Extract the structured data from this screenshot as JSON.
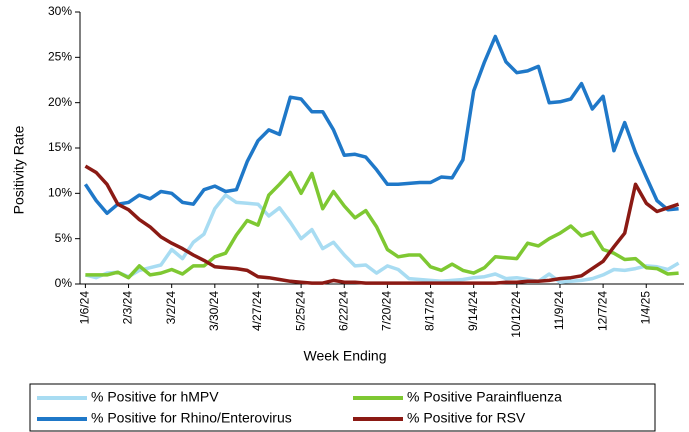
{
  "chart_data": {
    "type": "line",
    "x_label": "Week Ending",
    "y_label": "Positivity Rate",
    "categories": [
      "1/6/24",
      null,
      null,
      null,
      "2/3/24",
      null,
      null,
      null,
      "3/2/24",
      null,
      null,
      null,
      "3/30/24",
      null,
      null,
      null,
      "4/27/24",
      null,
      null,
      null,
      "5/25/24",
      null,
      null,
      null,
      "6/22/24",
      null,
      null,
      null,
      "7/20/24",
      null,
      null,
      null,
      "8/17/24",
      null,
      null,
      null,
      "9/14/24",
      null,
      null,
      null,
      "10/12/24",
      null,
      null,
      null,
      "11/9/24",
      null,
      null,
      null,
      "12/7/24",
      null,
      null,
      null,
      "1/4/25",
      null,
      null,
      null
    ],
    "ylim": [
      0,
      30
    ],
    "yticks": [
      {
        "value": 0,
        "label": "0%"
      },
      {
        "value": 5,
        "label": "5%"
      },
      {
        "value": 10,
        "label": "10%"
      },
      {
        "value": 15,
        "label": "15%"
      },
      {
        "value": 20,
        "label": "20%"
      },
      {
        "value": 25,
        "label": "25%"
      },
      {
        "value": 30,
        "label": "30%"
      }
    ],
    "grid": false,
    "legend_position": "bottom",
    "series": [
      {
        "name": "% Positive for hMPV",
        "color": "#a8dcf2",
        "values": [
          1,
          0.7,
          1.2,
          1.3,
          0.8,
          1.5,
          1.8,
          2.1,
          3.8,
          2.8,
          4.6,
          5.5,
          8.3,
          9.8,
          9,
          8.9,
          8.8,
          7.5,
          8.4,
          6.8,
          5,
          6,
          3.9,
          4.6,
          3.2,
          2,
          2.1,
          1.2,
          2,
          1.6,
          0.6,
          0.5,
          0.4,
          0.3,
          0.4,
          0.5,
          0.7,
          0.8,
          1.1,
          0.6,
          0.7,
          0.5,
          0.3,
          1.1,
          0.2,
          0.3,
          0.4,
          0.6,
          1,
          1.6,
          1.5,
          1.7,
          2,
          1.9,
          1.6,
          2.3
        ]
      },
      {
        "name": "% Positive Parainfluenza",
        "color": "#7ec832",
        "values": [
          1,
          1,
          1,
          1.3,
          0.7,
          2,
          1,
          1.2,
          1.6,
          1.1,
          2,
          2,
          3,
          3.4,
          5.4,
          7,
          6.5,
          9.8,
          11,
          12.3,
          10,
          12.2,
          8.3,
          10.2,
          8.6,
          7.3,
          8.1,
          6.3,
          3.8,
          3,
          3.2,
          3.2,
          1.9,
          1.5,
          2.2,
          1.5,
          1.2,
          1.8,
          3,
          2.9,
          2.8,
          4.5,
          4.2,
          5,
          5.6,
          6.4,
          5.3,
          5.7,
          3.8,
          3.4,
          2.7,
          2.8,
          1.8,
          1.7,
          1.1,
          1.2
        ]
      },
      {
        "name": "% Positive for Rhino/Enterovirus",
        "color": "#1f78c8",
        "values": [
          11,
          9.2,
          7.8,
          8.8,
          9,
          9.8,
          9.4,
          10.2,
          10,
          9,
          8.8,
          10.4,
          10.8,
          10.2,
          10.4,
          13.5,
          15.8,
          17,
          16.5,
          20.6,
          20.4,
          19,
          19,
          17,
          14.2,
          14.3,
          14,
          12.6,
          11,
          11,
          11.1,
          11.2,
          11.2,
          11.8,
          11.7,
          13.7,
          21.3,
          24.5,
          27.3,
          24.5,
          23.3,
          23.5,
          24,
          20,
          20.1,
          20.4,
          22.1,
          19.3,
          20.7,
          14.7,
          17.8,
          14.5,
          11.8,
          9.2,
          8.2,
          8.3
        ]
      },
      {
        "name": "% Positive for RSV",
        "color": "#8b1a14",
        "values": [
          13,
          12.3,
          11,
          8.8,
          8.2,
          7.1,
          6.3,
          5.2,
          4.5,
          3.9,
          3.2,
          2.6,
          1.9,
          1.8,
          1.7,
          1.5,
          0.8,
          0.7,
          0.5,
          0.3,
          0.2,
          0.1,
          0.1,
          0.4,
          0.2,
          0.2,
          0.1,
          0.1,
          0.1,
          0.1,
          0.1,
          0.1,
          0.1,
          0.1,
          0.1,
          0.1,
          0.1,
          0.1,
          0.1,
          0.2,
          0.2,
          0.3,
          0.3,
          0.4,
          0.6,
          0.7,
          0.9,
          1.7,
          2.5,
          4.1,
          5.6,
          11,
          8.9,
          8,
          8.4,
          8.8
        ]
      }
    ]
  }
}
